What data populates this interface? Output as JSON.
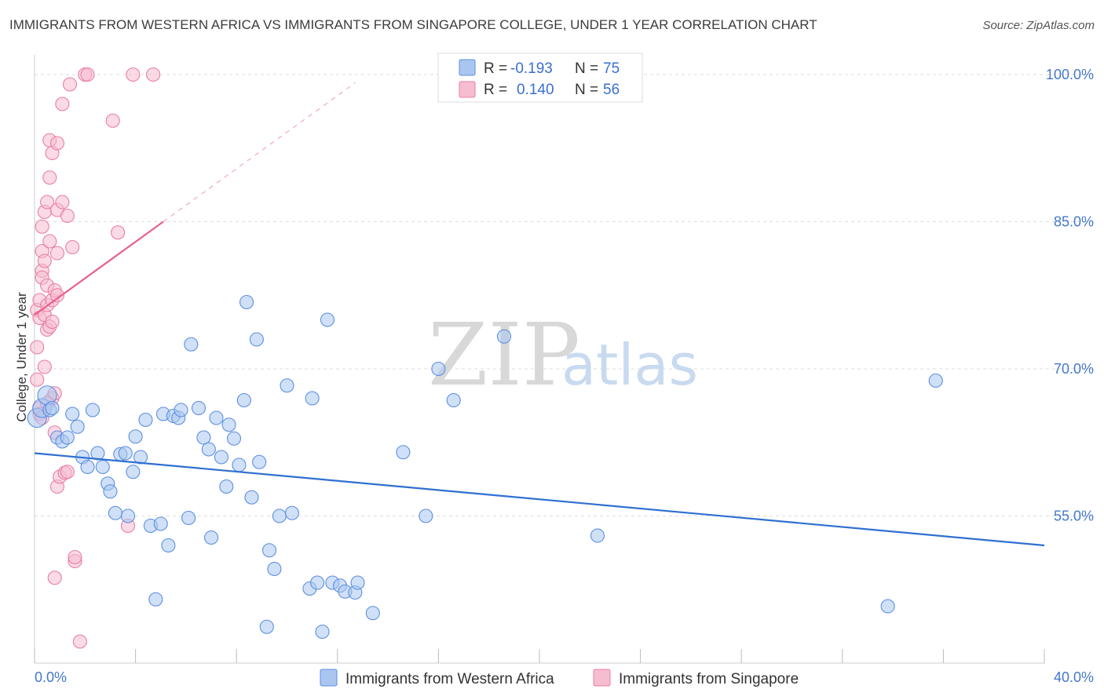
{
  "header": {
    "title": "IMMIGRANTS FROM WESTERN AFRICA VS IMMIGRANTS FROM SINGAPORE COLLEGE, UNDER 1 YEAR CORRELATION CHART",
    "source": "Source: ZipAtlas.com"
  },
  "watermark": {
    "zip": "ZIP",
    "atlas": "atlas"
  },
  "colors": {
    "blue": "#5b8fe0",
    "blue_fill": "#aac6f0",
    "blue_line": "#2f6fd2",
    "pink": "#e87ea0",
    "pink_fill": "#f6bcd0",
    "pink_line": "#e8608a"
  },
  "legend": {
    "rows": [
      {
        "r_label": "R =",
        "r_value": "-0.193",
        "n_label": "N =",
        "n_value": "75"
      },
      {
        "r_label": "R =",
        "r_value": "0.140",
        "n_label": "N =",
        "n_value": "56"
      }
    ]
  },
  "chart_data": {
    "type": "scatter",
    "title": "IMMIGRANTS FROM WESTERN AFRICA VS IMMIGRANTS FROM SINGAPORE COLLEGE, UNDER 1 YEAR CORRELATION CHART",
    "xlabel": "",
    "ylabel": "College, Under 1 year",
    "xlim": [
      0,
      40
    ],
    "ylim": [
      40,
      102
    ],
    "x_tick_labels": [
      "0.0%",
      "40.0%"
    ],
    "y_ticks": [
      55,
      70,
      85,
      100
    ],
    "y_tick_labels": [
      "55.0%",
      "70.0%",
      "85.0%",
      "100.0%"
    ],
    "series": [
      {
        "name": "Immigrants from Western Africa",
        "color": "#5b8fe0",
        "trend": {
          "x": [
            0,
            40
          ],
          "y": [
            61.4,
            52.0
          ]
        },
        "points": [
          [
            0.1,
            65.0
          ],
          [
            0.3,
            66.0
          ],
          [
            0.5,
            67.3
          ],
          [
            0.6,
            65.8
          ],
          [
            0.7,
            66.0
          ],
          [
            0.9,
            63.0
          ],
          [
            1.1,
            62.6
          ],
          [
            1.3,
            63.0
          ],
          [
            1.5,
            65.4
          ],
          [
            1.7,
            64.1
          ],
          [
            1.9,
            61.0
          ],
          [
            2.1,
            60.0
          ],
          [
            2.3,
            65.8
          ],
          [
            2.5,
            61.4
          ],
          [
            2.7,
            60.0
          ],
          [
            2.9,
            58.3
          ],
          [
            3.0,
            57.5
          ],
          [
            3.2,
            55.3
          ],
          [
            3.4,
            61.3
          ],
          [
            3.6,
            61.4
          ],
          [
            3.7,
            55.0
          ],
          [
            3.9,
            59.5
          ],
          [
            4.0,
            63.1
          ],
          [
            4.2,
            61.0
          ],
          [
            4.4,
            64.8
          ],
          [
            4.6,
            54.0
          ],
          [
            4.8,
            46.5
          ],
          [
            5.0,
            54.2
          ],
          [
            5.1,
            65.4
          ],
          [
            5.3,
            52.0
          ],
          [
            5.5,
            65.2
          ],
          [
            5.7,
            65.0
          ],
          [
            5.8,
            65.8
          ],
          [
            6.1,
            54.8
          ],
          [
            6.2,
            72.5
          ],
          [
            6.5,
            66.0
          ],
          [
            6.7,
            63.0
          ],
          [
            6.9,
            61.8
          ],
          [
            7.0,
            52.8
          ],
          [
            7.2,
            65.0
          ],
          [
            7.4,
            61.0
          ],
          [
            7.6,
            58.0
          ],
          [
            7.7,
            64.3
          ],
          [
            7.9,
            62.9
          ],
          [
            8.1,
            60.2
          ],
          [
            8.3,
            66.8
          ],
          [
            8.4,
            76.8
          ],
          [
            8.6,
            56.9
          ],
          [
            8.8,
            73.0
          ],
          [
            8.9,
            60.5
          ],
          [
            9.2,
            43.7
          ],
          [
            9.3,
            51.5
          ],
          [
            9.5,
            49.6
          ],
          [
            9.7,
            55.0
          ],
          [
            10.0,
            68.3
          ],
          [
            10.2,
            55.3
          ],
          [
            10.9,
            47.6
          ],
          [
            11.0,
            67.0
          ],
          [
            11.2,
            48.2
          ],
          [
            11.4,
            43.2
          ],
          [
            11.6,
            75.0
          ],
          [
            11.8,
            48.2
          ],
          [
            12.1,
            47.9
          ],
          [
            12.3,
            47.3
          ],
          [
            12.7,
            47.2
          ],
          [
            12.8,
            48.2
          ],
          [
            13.4,
            45.1
          ],
          [
            14.6,
            61.5
          ],
          [
            15.5,
            55.0
          ],
          [
            16.0,
            70.0
          ],
          [
            16.6,
            66.8
          ],
          [
            18.6,
            73.3
          ],
          [
            22.3,
            53.0
          ],
          [
            33.8,
            45.8
          ],
          [
            35.7,
            68.8
          ]
        ]
      },
      {
        "name": "Immigrants from Singapore",
        "color": "#e87ea0",
        "trend": {
          "x": [
            0,
            5.1
          ],
          "y": [
            75.5,
            85.0
          ]
        },
        "points": [
          [
            0.1,
            72.2
          ],
          [
            0.1,
            68.9
          ],
          [
            0.1,
            76.0
          ],
          [
            0.2,
            77.0
          ],
          [
            0.2,
            75.2
          ],
          [
            0.2,
            66.0
          ],
          [
            0.3,
            82.0
          ],
          [
            0.3,
            80.0
          ],
          [
            0.3,
            84.5
          ],
          [
            0.3,
            79.3
          ],
          [
            0.4,
            86.0
          ],
          [
            0.4,
            81.0
          ],
          [
            0.4,
            75.5
          ],
          [
            0.4,
            70.2
          ],
          [
            0.5,
            87.0
          ],
          [
            0.5,
            78.5
          ],
          [
            0.5,
            76.5
          ],
          [
            0.5,
            74.0
          ],
          [
            0.6,
            93.3
          ],
          [
            0.6,
            89.5
          ],
          [
            0.6,
            83.0
          ],
          [
            0.6,
            74.3
          ],
          [
            0.7,
            92.0
          ],
          [
            0.7,
            77.0
          ],
          [
            0.7,
            74.8
          ],
          [
            0.7,
            67.0
          ],
          [
            0.8,
            78.0
          ],
          [
            0.8,
            67.5
          ],
          [
            0.8,
            63.5
          ],
          [
            0.9,
            93.0
          ],
          [
            0.9,
            86.2
          ],
          [
            0.9,
            81.8
          ],
          [
            0.9,
            58.0
          ],
          [
            1.0,
            59.0
          ],
          [
            1.1,
            97.0
          ],
          [
            1.1,
            87.0
          ],
          [
            1.2,
            59.4
          ],
          [
            1.3,
            59.5
          ],
          [
            1.3,
            85.6
          ],
          [
            1.4,
            99.0
          ],
          [
            1.5,
            82.4
          ],
          [
            1.6,
            50.4
          ],
          [
            1.6,
            50.8
          ],
          [
            1.8,
            42.2
          ],
          [
            2.0,
            100.0
          ],
          [
            2.1,
            100.0
          ],
          [
            3.1,
            95.3
          ],
          [
            3.3,
            83.9
          ],
          [
            3.7,
            54.0
          ],
          [
            3.9,
            100.0
          ],
          [
            4.7,
            100.0
          ],
          [
            0.8,
            48.7
          ],
          [
            0.2,
            65.4
          ],
          [
            0.3,
            65.0
          ],
          [
            0.5,
            66.5
          ],
          [
            0.9,
            77.5
          ]
        ]
      }
    ]
  },
  "bottom_legend": {
    "items": [
      {
        "label": "Immigrants from Western Africa"
      },
      {
        "label": "Immigrants from Singapore"
      }
    ]
  }
}
